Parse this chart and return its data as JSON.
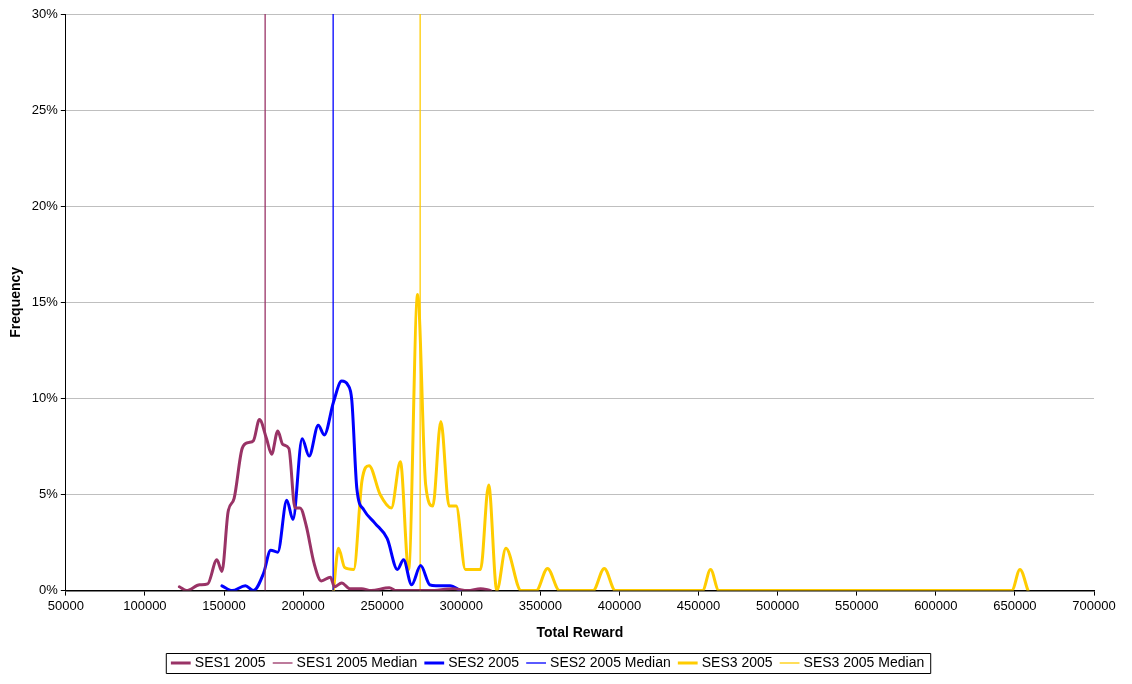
{
  "chart_data": {
    "type": "line",
    "xlabel": "Total Reward",
    "ylabel": "Frequency",
    "xlim": [
      50000,
      700000
    ],
    "xticks": [
      50000,
      100000,
      150000,
      200000,
      250000,
      300000,
      350000,
      400000,
      450000,
      500000,
      550000,
      600000,
      650000,
      700000
    ],
    "ylim": [
      0,
      30
    ],
    "yticks": [
      {
        "value": 0,
        "label": "0%"
      },
      {
        "value": 5,
        "label": "5%"
      },
      {
        "value": 10,
        "label": "10%"
      },
      {
        "value": 15,
        "label": "15%"
      },
      {
        "value": 20,
        "label": "20%"
      },
      {
        "value": 25,
        "label": "25%"
      },
      {
        "value": 30,
        "label": "30%"
      }
    ],
    "grid": "y",
    "legend": "bottom",
    "marker": "none",
    "line_style": "solid",
    "series": [
      {
        "name": "SES1 2005",
        "color": "#993366",
        "x": [
          121800,
          126300,
          134600,
          139700,
          145500,
          148700,
          152600,
          156400,
          161500,
          165400,
          168600,
          172400,
          176900,
          180100,
          184000,
          187200,
          191000,
          194900,
          198100,
          201900,
          207000,
          211500,
          217300,
          219800,
          224400,
          229500,
          237000,
          243000,
          254500,
          259000,
          280000,
          294800,
          304000,
          312200,
          318600
        ],
        "values": [
          0.2,
          0,
          0.3,
          0.35,
          1.6,
          1.0,
          4.1,
          4.8,
          7.4,
          7.7,
          7.8,
          8.9,
          7.9,
          7.1,
          8.3,
          7.6,
          7.4,
          4.3,
          4.3,
          3.4,
          1.4,
          0.5,
          0.7,
          0.2,
          0.4,
          0.1,
          0.1,
          0,
          0.15,
          0,
          0,
          0.1,
          0,
          0.1,
          0
        ]
      },
      {
        "name": "SES2 2005",
        "color": "#0000ff",
        "x": [
          148700,
          155100,
          163500,
          168600,
          175000,
          179500,
          184000,
          189700,
          193600,
          199400,
          203800,
          209600,
          213400,
          219200,
          224400,
          228300,
          230800,
          234000,
          238400,
          245500,
          253200,
          259600,
          263500,
          268600,
          274300,
          280100,
          284000,
          292900,
          299400
        ],
        "values": [
          0.25,
          0,
          0.25,
          0,
          0.9,
          2.1,
          2.0,
          4.7,
          3.7,
          7.9,
          7.0,
          8.6,
          8.1,
          9.8,
          10.9,
          10.7,
          9.9,
          5.3,
          4.2,
          3.5,
          2.7,
          1.1,
          1.6,
          0.3,
          1.3,
          0.3,
          0.25,
          0.25,
          0
        ]
      },
      {
        "name": "SES3 2005",
        "color": "#ffcc00",
        "x": [
          219200,
          222400,
          226300,
          232000,
          237200,
          241700,
          248700,
          255800,
          261500,
          266700,
          272400,
          277500,
          282000,
          287100,
          292300,
          296800,
          302600,
          307700,
          312200,
          317300,
          322500,
          328200,
          337800,
          347400,
          354500,
          362100,
          383300,
          390400,
          397400,
          452500,
          457600,
          462800,
          648000,
          653200,
          658300
        ],
        "values": [
          0,
          2.2,
          1.2,
          1.1,
          5.7,
          6.5,
          5.0,
          4.3,
          6.7,
          1.1,
          15.4,
          5.5,
          4.4,
          8.8,
          4.4,
          4.4,
          1.1,
          1.1,
          1.1,
          5.5,
          0,
          2.2,
          0,
          0,
          1.15,
          0,
          0,
          1.15,
          0,
          0,
          1.1,
          0,
          0,
          1.1,
          0
        ]
      }
    ],
    "ref_lines": [
      {
        "axis": "x",
        "value": 176000,
        "label": "SES1 2005 Median",
        "color": "#993366"
      },
      {
        "axis": "x",
        "value": 219000,
        "label": "SES2 2005 Median",
        "color": "#0000ff"
      },
      {
        "axis": "x",
        "value": 274000,
        "label": "SES3 2005 Median",
        "color": "#ffcc00"
      }
    ]
  }
}
